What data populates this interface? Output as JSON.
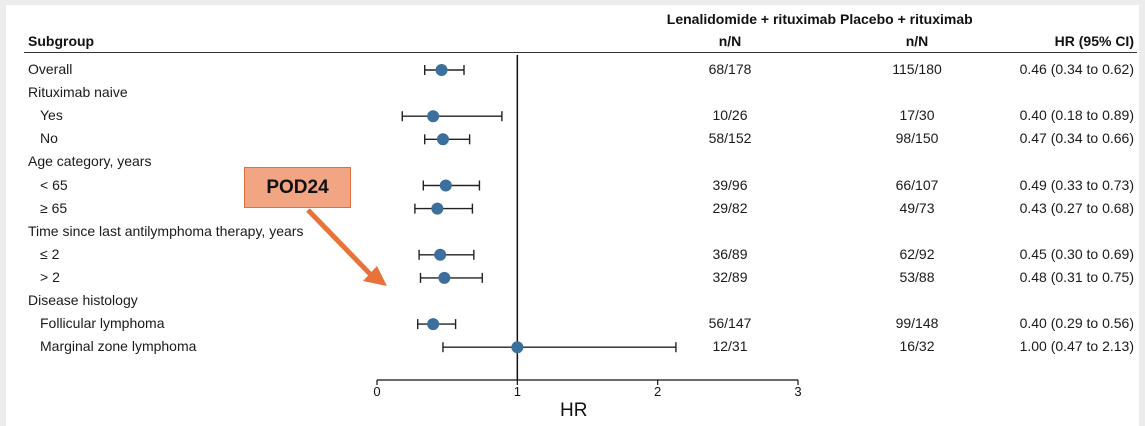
{
  "header": {
    "subgroup": "Subgroup",
    "treat_line1": "Lenalidomide + rituximab",
    "treat_line2": "n/N",
    "ctrl_line1": "Placebo + rituximab",
    "ctrl_line2": "n/N",
    "hr": "HR (95% CI)"
  },
  "annotation": {
    "label": "POD24",
    "color": "#e8733a",
    "fill": "#f2a582"
  },
  "chart_data": {
    "type": "forest",
    "xlabel": "HR",
    "xlim": [
      0,
      3
    ],
    "xticks": [
      0,
      1,
      2,
      3
    ],
    "reference_line": 1,
    "marker_color": "#3c6f9c",
    "rows": [
      {
        "label": "Overall",
        "indent": 0,
        "hr": 0.46,
        "lo": 0.34,
        "hi": 0.62,
        "treat": "68/178",
        "ctrl": "115/180",
        "ci_text": "0.46 (0.34 to 0.62)"
      },
      {
        "label": "Rituximab naive",
        "indent": 0,
        "hr": null
      },
      {
        "label": "Yes",
        "indent": 1,
        "hr": 0.4,
        "lo": 0.18,
        "hi": 0.89,
        "treat": "10/26",
        "ctrl": "17/30",
        "ci_text": "0.40 (0.18 to 0.89)"
      },
      {
        "label": "No",
        "indent": 1,
        "hr": 0.47,
        "lo": 0.34,
        "hi": 0.66,
        "treat": "58/152",
        "ctrl": "98/150",
        "ci_text": "0.47 (0.34 to 0.66)"
      },
      {
        "label": "Age category, years",
        "indent": 0,
        "hr": null
      },
      {
        "label": "< 65",
        "indent": 1,
        "hr": 0.49,
        "lo": 0.33,
        "hi": 0.73,
        "treat": "39/96",
        "ctrl": "66/107",
        "ci_text": "0.49 (0.33 to 0.73)"
      },
      {
        "label": "≥ 65",
        "indent": 1,
        "hr": 0.43,
        "lo": 0.27,
        "hi": 0.68,
        "treat": "29/82",
        "ctrl": "49/73",
        "ci_text": "0.43 (0.27 to 0.68)"
      },
      {
        "label": "Time since last antilymphoma therapy, years",
        "indent": 0,
        "hr": null
      },
      {
        "label": "≤ 2",
        "indent": 1,
        "hr": 0.45,
        "lo": 0.3,
        "hi": 0.69,
        "treat": "36/89",
        "ctrl": "62/92",
        "ci_text": "0.45 (0.30 to 0.69)"
      },
      {
        "label": "> 2",
        "indent": 1,
        "hr": 0.48,
        "lo": 0.31,
        "hi": 0.75,
        "treat": "32/89",
        "ctrl": "53/88",
        "ci_text": "0.48 (0.31 to 0.75)"
      },
      {
        "label": "Disease histology",
        "indent": 0,
        "hr": null
      },
      {
        "label": "Follicular lymphoma",
        "indent": 1,
        "hr": 0.4,
        "lo": 0.29,
        "hi": 0.56,
        "treat": "56/147",
        "ctrl": "99/148",
        "ci_text": "0.40 (0.29 to 0.56)"
      },
      {
        "label": "Marginal zone lymphoma",
        "indent": 1,
        "hr": 1.0,
        "lo": 0.47,
        "hi": 2.13,
        "treat": "12/31",
        "ctrl": "16/32",
        "ci_text": "1.00 (0.47 to 2.13)"
      }
    ]
  }
}
